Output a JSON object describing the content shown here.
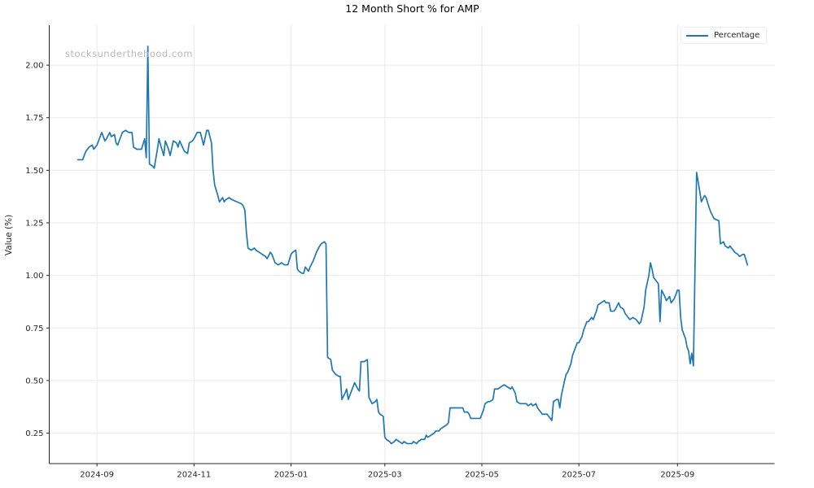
{
  "watermark": "stocksunderthehood.com",
  "legend": {
    "label": "Percentage"
  },
  "colors": {
    "line": "#1f77b4",
    "grid": "#e9e9e9",
    "spine": "#262626",
    "tick_label": "#262626",
    "watermark": "#b9b9b9"
  },
  "chart_data": {
    "type": "line",
    "title": "12 Month Short % for AMP",
    "xlabel": "",
    "ylabel": "Value (%)",
    "grid": true,
    "legend_position": "upper right",
    "xlim": [
      "2024-08-02",
      "2025-11-01"
    ],
    "ylim": [
      0.105,
      2.19
    ],
    "y_ticks": [
      0.25,
      0.5,
      0.75,
      1.0,
      1.25,
      1.5,
      1.75,
      2.0
    ],
    "x_ticks": [
      {
        "date": "2024-09-01",
        "label": "2024-09"
      },
      {
        "date": "2024-11-01",
        "label": "2024-11"
      },
      {
        "date": "2025-01-01",
        "label": "2025-01"
      },
      {
        "date": "2025-03-01",
        "label": "2025-03"
      },
      {
        "date": "2025-05-01",
        "label": "2025-05"
      },
      {
        "date": "2025-07-01",
        "label": "2025-07"
      },
      {
        "date": "2025-09-01",
        "label": "2025-09"
      }
    ],
    "series": [
      {
        "name": "Percentage",
        "color": "#1f77b4",
        "points": [
          [
            "2024-08-20",
            1.55
          ],
          [
            "2024-08-23",
            1.55
          ],
          [
            "2024-08-25",
            1.59
          ],
          [
            "2024-08-27",
            1.61
          ],
          [
            "2024-08-29",
            1.62
          ],
          [
            "2024-08-30",
            1.6
          ],
          [
            "2024-09-01",
            1.62
          ],
          [
            "2024-09-03",
            1.66
          ],
          [
            "2024-09-04",
            1.68
          ],
          [
            "2024-09-06",
            1.64
          ],
          [
            "2024-09-07",
            1.65
          ],
          [
            "2024-09-09",
            1.68
          ],
          [
            "2024-09-10",
            1.66
          ],
          [
            "2024-09-12",
            1.67
          ],
          [
            "2024-09-13",
            1.63
          ],
          [
            "2024-09-14",
            1.62
          ],
          [
            "2024-09-16",
            1.66
          ],
          [
            "2024-09-17",
            1.68
          ],
          [
            "2024-09-19",
            1.69
          ],
          [
            "2024-09-21",
            1.68
          ],
          [
            "2024-09-23",
            1.68
          ],
          [
            "2024-09-24",
            1.61
          ],
          [
            "2024-09-26",
            1.6
          ],
          [
            "2024-09-29",
            1.6
          ],
          [
            "2024-10-01",
            1.65
          ],
          [
            "2024-10-02",
            1.56
          ],
          [
            "2024-10-03",
            2.09
          ],
          [
            "2024-10-04",
            1.53
          ],
          [
            "2024-10-06",
            1.52
          ],
          [
            "2024-10-07",
            1.51
          ],
          [
            "2024-10-09",
            1.6
          ],
          [
            "2024-10-10",
            1.65
          ],
          [
            "2024-10-11",
            1.62
          ],
          [
            "2024-10-13",
            1.57
          ],
          [
            "2024-10-14",
            1.64
          ],
          [
            "2024-10-16",
            1.6
          ],
          [
            "2024-10-17",
            1.57
          ],
          [
            "2024-10-19",
            1.64
          ],
          [
            "2024-10-21",
            1.63
          ],
          [
            "2024-10-22",
            1.61
          ],
          [
            "2024-10-23",
            1.64
          ],
          [
            "2024-10-26",
            1.59
          ],
          [
            "2024-10-28",
            1.58
          ],
          [
            "2024-10-29",
            1.63
          ],
          [
            "2024-10-31",
            1.64
          ],
          [
            "2024-11-01",
            1.65
          ],
          [
            "2024-11-03",
            1.68
          ],
          [
            "2024-11-05",
            1.68
          ],
          [
            "2024-11-07",
            1.62
          ],
          [
            "2024-11-09",
            1.69
          ],
          [
            "2024-11-10",
            1.69
          ],
          [
            "2024-11-12",
            1.63
          ],
          [
            "2024-11-13",
            1.5
          ],
          [
            "2024-11-14",
            1.43
          ],
          [
            "2024-11-16",
            1.38
          ],
          [
            "2024-11-17",
            1.35
          ],
          [
            "2024-11-19",
            1.37
          ],
          [
            "2024-11-20",
            1.35
          ],
          [
            "2024-11-21",
            1.36
          ],
          [
            "2024-11-23",
            1.37
          ],
          [
            "2024-11-25",
            1.36
          ],
          [
            "2024-11-28",
            1.35
          ],
          [
            "2024-12-01",
            1.34
          ],
          [
            "2024-12-02",
            1.33
          ],
          [
            "2024-12-03",
            1.31
          ],
          [
            "2024-12-04",
            1.2
          ],
          [
            "2024-12-05",
            1.13
          ],
          [
            "2024-12-07",
            1.12
          ],
          [
            "2024-12-09",
            1.13
          ],
          [
            "2024-12-10",
            1.12
          ],
          [
            "2024-12-12",
            1.11
          ],
          [
            "2024-12-14",
            1.1
          ],
          [
            "2024-12-16",
            1.09
          ],
          [
            "2024-12-17",
            1.08
          ],
          [
            "2024-12-19",
            1.11
          ],
          [
            "2024-12-20",
            1.1
          ],
          [
            "2024-12-22",
            1.06
          ],
          [
            "2024-12-24",
            1.05
          ],
          [
            "2024-12-26",
            1.06
          ],
          [
            "2024-12-28",
            1.05
          ],
          [
            "2024-12-30",
            1.05
          ],
          [
            "2025-01-01",
            1.1
          ],
          [
            "2025-01-02",
            1.11
          ],
          [
            "2025-01-04",
            1.12
          ],
          [
            "2025-01-05",
            1.03
          ],
          [
            "2025-01-06",
            1.02
          ],
          [
            "2025-01-08",
            1.01
          ],
          [
            "2025-01-09",
            1.01
          ],
          [
            "2025-01-10",
            1.04
          ],
          [
            "2025-01-12",
            1.02
          ],
          [
            "2025-01-13",
            1.04
          ],
          [
            "2025-01-15",
            1.07
          ],
          [
            "2025-01-17",
            1.11
          ],
          [
            "2025-01-19",
            1.14
          ],
          [
            "2025-01-20",
            1.15
          ],
          [
            "2025-01-22",
            1.16
          ],
          [
            "2025-01-23",
            1.15
          ],
          [
            "2025-01-24",
            0.61
          ],
          [
            "2025-01-26",
            0.6
          ],
          [
            "2025-01-27",
            0.55
          ],
          [
            "2025-01-29",
            0.53
          ],
          [
            "2025-01-31",
            0.52
          ],
          [
            "2025-02-01",
            0.52
          ],
          [
            "2025-02-02",
            0.41
          ],
          [
            "2025-02-04",
            0.44
          ],
          [
            "2025-02-05",
            0.46
          ],
          [
            "2025-02-06",
            0.41
          ],
          [
            "2025-02-08",
            0.45
          ],
          [
            "2025-02-09",
            0.47
          ],
          [
            "2025-02-10",
            0.49
          ],
          [
            "2025-02-12",
            0.46
          ],
          [
            "2025-02-13",
            0.45
          ],
          [
            "2025-02-14",
            0.59
          ],
          [
            "2025-02-16",
            0.59
          ],
          [
            "2025-02-18",
            0.6
          ],
          [
            "2025-02-19",
            0.42
          ],
          [
            "2025-02-21",
            0.39
          ],
          [
            "2025-02-23",
            0.4
          ],
          [
            "2025-02-24",
            0.41
          ],
          [
            "2025-02-25",
            0.35
          ],
          [
            "2025-02-26",
            0.34
          ],
          [
            "2025-02-28",
            0.33
          ],
          [
            "2025-03-01",
            0.23
          ],
          [
            "2025-03-02",
            0.22
          ],
          [
            "2025-03-04",
            0.21
          ],
          [
            "2025-03-05",
            0.2
          ],
          [
            "2025-03-07",
            0.21
          ],
          [
            "2025-03-08",
            0.22
          ],
          [
            "2025-03-10",
            0.21
          ],
          [
            "2025-03-12",
            0.2
          ],
          [
            "2025-03-13",
            0.21
          ],
          [
            "2025-03-15",
            0.2
          ],
          [
            "2025-03-18",
            0.2
          ],
          [
            "2025-03-19",
            0.21
          ],
          [
            "2025-03-21",
            0.2
          ],
          [
            "2025-03-22",
            0.21
          ],
          [
            "2025-03-24",
            0.22
          ],
          [
            "2025-03-26",
            0.22
          ],
          [
            "2025-03-27",
            0.24
          ],
          [
            "2025-03-28",
            0.23
          ],
          [
            "2025-03-30",
            0.24
          ],
          [
            "2025-04-01",
            0.25
          ],
          [
            "2025-04-02",
            0.26
          ],
          [
            "2025-04-04",
            0.26
          ],
          [
            "2025-04-05",
            0.27
          ],
          [
            "2025-04-07",
            0.28
          ],
          [
            "2025-04-09",
            0.29
          ],
          [
            "2025-04-10",
            0.3
          ],
          [
            "2025-04-11",
            0.37
          ],
          [
            "2025-04-13",
            0.37
          ],
          [
            "2025-04-15",
            0.37
          ],
          [
            "2025-04-17",
            0.37
          ],
          [
            "2025-04-19",
            0.37
          ],
          [
            "2025-04-20",
            0.35
          ],
          [
            "2025-04-22",
            0.35
          ],
          [
            "2025-04-23",
            0.34
          ],
          [
            "2025-04-24",
            0.32
          ],
          [
            "2025-04-26",
            0.32
          ],
          [
            "2025-04-28",
            0.32
          ],
          [
            "2025-04-30",
            0.32
          ],
          [
            "2025-05-02",
            0.36
          ],
          [
            "2025-05-03",
            0.39
          ],
          [
            "2025-05-05",
            0.4
          ],
          [
            "2025-05-06",
            0.4
          ],
          [
            "2025-05-08",
            0.41
          ],
          [
            "2025-05-09",
            0.46
          ],
          [
            "2025-05-11",
            0.46
          ],
          [
            "2025-05-13",
            0.47
          ],
          [
            "2025-05-15",
            0.48
          ],
          [
            "2025-05-17",
            0.47
          ],
          [
            "2025-05-19",
            0.46
          ],
          [
            "2025-05-20",
            0.47
          ],
          [
            "2025-05-22",
            0.44
          ],
          [
            "2025-05-23",
            0.4
          ],
          [
            "2025-05-25",
            0.39
          ],
          [
            "2025-05-27",
            0.39
          ],
          [
            "2025-05-29",
            0.39
          ],
          [
            "2025-05-30",
            0.38
          ],
          [
            "2025-06-01",
            0.39
          ],
          [
            "2025-06-02",
            0.38
          ],
          [
            "2025-06-04",
            0.39
          ],
          [
            "2025-06-05",
            0.37
          ],
          [
            "2025-06-07",
            0.35
          ],
          [
            "2025-06-08",
            0.34
          ],
          [
            "2025-06-10",
            0.34
          ],
          [
            "2025-06-11",
            0.34
          ],
          [
            "2025-06-13",
            0.32
          ],
          [
            "2025-06-14",
            0.31
          ],
          [
            "2025-06-15",
            0.4
          ],
          [
            "2025-06-17",
            0.41
          ],
          [
            "2025-06-18",
            0.41
          ],
          [
            "2025-06-19",
            0.37
          ],
          [
            "2025-06-20",
            0.43
          ],
          [
            "2025-06-22",
            0.5
          ],
          [
            "2025-06-23",
            0.53
          ],
          [
            "2025-06-24",
            0.54
          ],
          [
            "2025-06-26",
            0.58
          ],
          [
            "2025-06-27",
            0.62
          ],
          [
            "2025-06-29",
            0.66
          ],
          [
            "2025-06-30",
            0.68
          ],
          [
            "2025-07-01",
            0.68
          ],
          [
            "2025-07-03",
            0.71
          ],
          [
            "2025-07-04",
            0.74
          ],
          [
            "2025-07-06",
            0.78
          ],
          [
            "2025-07-07",
            0.78
          ],
          [
            "2025-07-09",
            0.8
          ],
          [
            "2025-07-10",
            0.79
          ],
          [
            "2025-07-12",
            0.83
          ],
          [
            "2025-07-13",
            0.86
          ],
          [
            "2025-07-15",
            0.87
          ],
          [
            "2025-07-17",
            0.88
          ],
          [
            "2025-07-18",
            0.87
          ],
          [
            "2025-07-20",
            0.87
          ],
          [
            "2025-07-21",
            0.83
          ],
          [
            "2025-07-23",
            0.83
          ],
          [
            "2025-07-24",
            0.84
          ],
          [
            "2025-07-26",
            0.87
          ],
          [
            "2025-07-27",
            0.85
          ],
          [
            "2025-07-29",
            0.84
          ],
          [
            "2025-07-30",
            0.82
          ],
          [
            "2025-08-01",
            0.8
          ],
          [
            "2025-08-02",
            0.79
          ],
          [
            "2025-08-04",
            0.8
          ],
          [
            "2025-08-06",
            0.79
          ],
          [
            "2025-08-08",
            0.77
          ],
          [
            "2025-08-09",
            0.78
          ],
          [
            "2025-08-11",
            0.85
          ],
          [
            "2025-08-12",
            0.93
          ],
          [
            "2025-08-14",
            1.0
          ],
          [
            "2025-08-15",
            1.06
          ],
          [
            "2025-08-16",
            1.03
          ],
          [
            "2025-08-17",
            0.99
          ],
          [
            "2025-08-19",
            0.97
          ],
          [
            "2025-08-20",
            0.96
          ],
          [
            "2025-08-21",
            0.78
          ],
          [
            "2025-08-22",
            0.93
          ],
          [
            "2025-08-24",
            0.9
          ],
          [
            "2025-08-25",
            0.88
          ],
          [
            "2025-08-27",
            0.9
          ],
          [
            "2025-08-28",
            0.87
          ],
          [
            "2025-08-30",
            0.89
          ],
          [
            "2025-08-31",
            0.91
          ],
          [
            "2025-09-01",
            0.93
          ],
          [
            "2025-09-02",
            0.93
          ],
          [
            "2025-09-03",
            0.8
          ],
          [
            "2025-09-04",
            0.74
          ],
          [
            "2025-09-06",
            0.7
          ],
          [
            "2025-09-07",
            0.66
          ],
          [
            "2025-09-08",
            0.64
          ],
          [
            "2025-09-09",
            0.58
          ],
          [
            "2025-09-10",
            0.63
          ],
          [
            "2025-09-11",
            0.57
          ],
          [
            "2025-09-13",
            1.49
          ],
          [
            "2025-09-15",
            1.4
          ],
          [
            "2025-09-16",
            1.35
          ],
          [
            "2025-09-18",
            1.38
          ],
          [
            "2025-09-19",
            1.37
          ],
          [
            "2025-09-21",
            1.32
          ],
          [
            "2025-09-22",
            1.3
          ],
          [
            "2025-09-24",
            1.27
          ],
          [
            "2025-09-27",
            1.26
          ],
          [
            "2025-09-28",
            1.15
          ],
          [
            "2025-09-30",
            1.16
          ],
          [
            "2025-10-01",
            1.14
          ],
          [
            "2025-10-03",
            1.13
          ],
          [
            "2025-10-04",
            1.14
          ],
          [
            "2025-10-06",
            1.12
          ],
          [
            "2025-10-07",
            1.11
          ],
          [
            "2025-10-09",
            1.1
          ],
          [
            "2025-10-10",
            1.09
          ],
          [
            "2025-10-12",
            1.1
          ],
          [
            "2025-10-13",
            1.1
          ],
          [
            "2025-10-15",
            1.05
          ]
        ]
      }
    ]
  }
}
